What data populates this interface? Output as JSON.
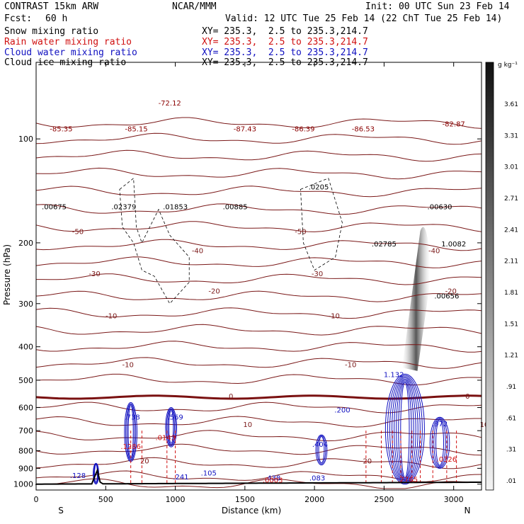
{
  "header": {
    "model": "CONTRAST 15km ARW",
    "center": "NCAR/MMM",
    "init": "Init: 00 UTC Sun 23 Feb 14",
    "fcst_label": "Fcst:",
    "fcst_value": "60 h",
    "valid": "Valid: 12 UTC Tue 25 Feb 14 (22 ChT Tue 25 Feb 14)"
  },
  "fields": [
    {
      "name": "Snow mixing ratio",
      "xy": "XY= 235.3,  2.5 to 235.3,214.7",
      "color": "#000000"
    },
    {
      "name": "Rain water mixing ratio",
      "xy": "XY= 235.3,  2.5 to 235.3,214.7",
      "color": "#d01010"
    },
    {
      "name": "Cloud water mixing ratio",
      "xy": "XY= 235.3,  2.5 to 235.3,214.7",
      "color": "#1010c0"
    },
    {
      "name": "Cloud ice mixing ratio",
      "xy": "XY= 235.3,  2.5 to 235.3,214.7",
      "color": "#000000"
    }
  ],
  "colorbar": {
    "unit": "g kg⁻¹",
    "labels": [
      "3.61",
      "3.31",
      "3.01",
      "2.71",
      "2.41",
      "2.11",
      "1.81",
      "1.51",
      "1.21",
      ".91",
      ".61",
      ".31",
      ".01"
    ]
  },
  "chart_data": {
    "type": "cross-section",
    "title": "",
    "xlabel": "Distance (km)",
    "ylabel": "Pressure (hPa)",
    "xlim": [
      0,
      3200
    ],
    "ylim": [
      1040,
      60
    ],
    "y_scale": "log",
    "x_ticks": [
      "0",
      "500",
      "1000",
      "1500",
      "2000",
      "2500",
      "3000"
    ],
    "y_ticks": [
      "100",
      "200",
      "300",
      "400",
      "500",
      "600",
      "700",
      "800",
      "900",
      "1000"
    ],
    "x_end_labels": {
      "left": "S",
      "right": "N"
    },
    "temperature_contours": [
      {
        "label": "-50",
        "p": 185
      },
      {
        "label": "-40",
        "p": 210
      },
      {
        "label": "-30",
        "p": 245
      },
      {
        "label": "-20",
        "p": 275
      },
      {
        "label": "-10",
        "p": 325
      },
      {
        "label": "0",
        "p": 555
      },
      {
        "label": "-10",
        "p": 450
      },
      {
        "label": "10",
        "p": 670
      },
      {
        "label": "20",
        "p": 855
      }
    ],
    "annotations": [
      {
        "text": "-85.35",
        "x": 180,
        "p": 95,
        "color": "#8b0000"
      },
      {
        "text": "-85.15",
        "x": 720,
        "p": 95,
        "color": "#8b0000"
      },
      {
        "text": "-72.12",
        "x": 960,
        "p": 80,
        "color": "#8b0000"
      },
      {
        "text": "-87.43",
        "x": 1500,
        "p": 95,
        "color": "#8b0000"
      },
      {
        "text": "-86.39",
        "x": 1920,
        "p": 95,
        "color": "#8b0000"
      },
      {
        "text": "-86.53",
        "x": 2350,
        "p": 95,
        "color": "#8b0000"
      },
      {
        "text": "-82.87",
        "x": 3000,
        "p": 92,
        "color": "#8b0000"
      },
      {
        "text": ".00675",
        "x": 130,
        "p": 160,
        "color": "#000000"
      },
      {
        "text": ".02379",
        "x": 630,
        "p": 160,
        "color": "#000000"
      },
      {
        "text": ".01853",
        "x": 1000,
        "p": 160,
        "color": "#000000"
      },
      {
        "text": ".00885",
        "x": 1430,
        "p": 160,
        "color": "#000000"
      },
      {
        "text": ".0205",
        "x": 2030,
        "p": 140,
        "color": "#000000"
      },
      {
        "text": ".00630",
        "x": 2900,
        "p": 160,
        "color": "#000000"
      },
      {
        "text": ".02785",
        "x": 2500,
        "p": 205,
        "color": "#000000"
      },
      {
        "text": ".00656",
        "x": 2950,
        "p": 290,
        "color": "#000000"
      },
      {
        "text": "1.0082",
        "x": 3000,
        "p": 205,
        "color": "#000000"
      },
      {
        "text": "1.132",
        "x": 2570,
        "p": 490,
        "color": "#1010c0"
      },
      {
        "text": ".200",
        "x": 2200,
        "p": 620,
        "color": "#1010c0"
      },
      {
        "text": ".738",
        "x": 690,
        "p": 650,
        "color": "#1010c0"
      },
      {
        "text": ".569",
        "x": 1000,
        "p": 650,
        "color": "#1010c0"
      },
      {
        "text": ".972",
        "x": 2900,
        "p": 680,
        "color": "#1010c0"
      },
      {
        "text": ".1286",
        "x": 680,
        "p": 790,
        "color": "#d01010"
      },
      {
        "text": ".0143",
        "x": 930,
        "p": 745,
        "color": "#d01010"
      },
      {
        "text": ".404",
        "x": 2040,
        "p": 780,
        "color": "#1010c0"
      },
      {
        "text": ".7765",
        "x": 2670,
        "p": 985,
        "color": "#d01010"
      },
      {
        "text": ".0326",
        "x": 2950,
        "p": 860,
        "color": "#d01010"
      },
      {
        "text": ".128",
        "x": 300,
        "p": 960,
        "color": "#1010c0"
      },
      {
        "text": ".241",
        "x": 1040,
        "p": 970,
        "color": "#1010c0"
      },
      {
        "text": ".105",
        "x": 1240,
        "p": 945,
        "color": "#1010c0"
      },
      {
        "text": ".438",
        "x": 1700,
        "p": 975,
        "color": "#1010c0"
      },
      {
        "text": ".0003",
        "x": 1700,
        "p": 990,
        "color": "#d01010"
      },
      {
        "text": ".083",
        "x": 2020,
        "p": 975,
        "color": "#1010c0"
      }
    ]
  }
}
